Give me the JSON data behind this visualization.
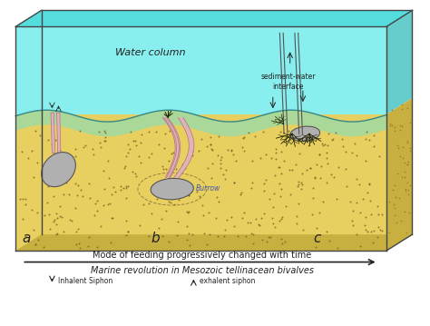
{
  "fig_width": 4.74,
  "fig_height": 3.59,
  "dpi": 100,
  "bg_color": "#ffffff",
  "water_color": "#88eeee",
  "water_top_color": "#55dddd",
  "green_layer_color": "#aad898",
  "sediment_color": "#e8d060",
  "sediment_dot_color": "#806020",
  "box_edge_color": "#444444",
  "shell_color": "#b0b0b0",
  "shell_edge": "#555555",
  "siphon_fill": "#e0b0c0",
  "siphon_edge": "#b07080",
  "burrow_edge": "#9a8040",
  "text_color": "#222222",
  "arrow_color": "#222222",
  "tentacle_color": "#222200",
  "water_label": "Water column",
  "interface_label": "sediment-water\ninterface",
  "burrow_label": "Burrow",
  "label_a": "a",
  "label_b": "b",
  "label_c": "c",
  "bottom_text1": "Mode of feeding progressively changed with time",
  "bottom_text2": "Marine revolution in Mesozoic tellinacean bivalves",
  "legend_text1": "Inhalent Siphon",
  "legend_text2": "exhalent siphon"
}
